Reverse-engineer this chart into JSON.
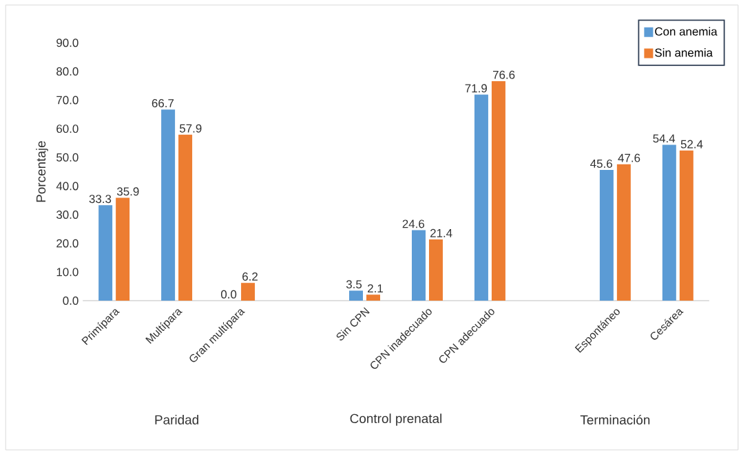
{
  "chart_data": {
    "type": "bar",
    "ylabel": "Porcentaje",
    "categories": [
      "Primípara",
      "Multípara",
      "Gran multípara",
      null,
      "Sin CPN",
      "CPN inadecuado",
      "CPN adecuado",
      null,
      "Espontáneo",
      "Cesárea"
    ],
    "series": [
      {
        "name": "Con anemia",
        "color": "#5b9bd5",
        "values": [
          33.3,
          66.7,
          0.0,
          null,
          3.5,
          24.6,
          71.9,
          null,
          45.6,
          54.4
        ],
        "value_labels": [
          "33.3",
          "66.7",
          "0.0",
          null,
          "3.5",
          "24.6",
          "71.9",
          null,
          "45.6",
          "54.4"
        ]
      },
      {
        "name": "Sin anemia",
        "color": "#ed7d31",
        "values": [
          35.9,
          57.9,
          6.2,
          null,
          2.1,
          21.4,
          76.6,
          null,
          47.6,
          52.4
        ],
        "value_labels": [
          "35.9",
          "57.9",
          "6.2",
          null,
          "2.1",
          "21.4",
          "76.6",
          null,
          "47.6",
          "52.4"
        ]
      }
    ],
    "annotations": [
      "Paridad",
      "Control prenatal",
      "Terminación"
    ],
    "ylim": [
      0,
      90
    ],
    "yticks": [
      {
        "value": 0,
        "label": "0.0"
      },
      {
        "value": 10,
        "label": "10.0"
      },
      {
        "value": 20,
        "label": "20.0"
      },
      {
        "value": 30,
        "label": "30.0"
      },
      {
        "value": 40,
        "label": "40.0"
      },
      {
        "value": 50,
        "label": "50.0"
      },
      {
        "value": 60,
        "label": "60.0"
      },
      {
        "value": 70,
        "label": "70.0"
      },
      {
        "value": 80,
        "label": "80.0"
      },
      {
        "value": 90,
        "label": "90.0"
      }
    ],
    "grid": false,
    "legend": "top right"
  }
}
